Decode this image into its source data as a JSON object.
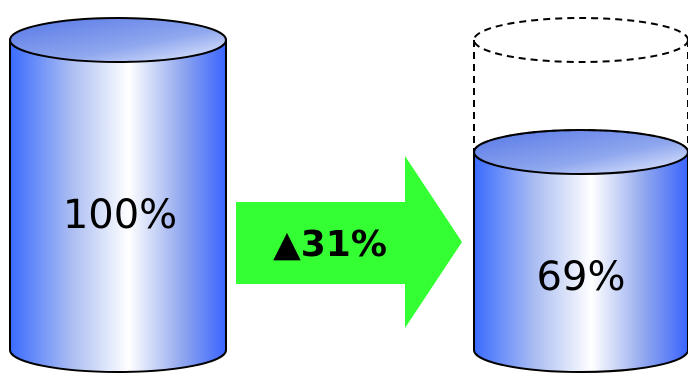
{
  "left_cylinder": {
    "label": "100%",
    "fill_fraction": 1.0
  },
  "arrow": {
    "label": "▲31%",
    "color": "#33ff33"
  },
  "right_cylinder": {
    "label": "69%",
    "fill_fraction": 0.69
  },
  "colors": {
    "cylinder_edge": "#3366ff",
    "cylinder_highlight": "#ffffff",
    "cylinder_top": "#6f90e8",
    "outline": "#000000",
    "dashed_outline": "#000000"
  }
}
